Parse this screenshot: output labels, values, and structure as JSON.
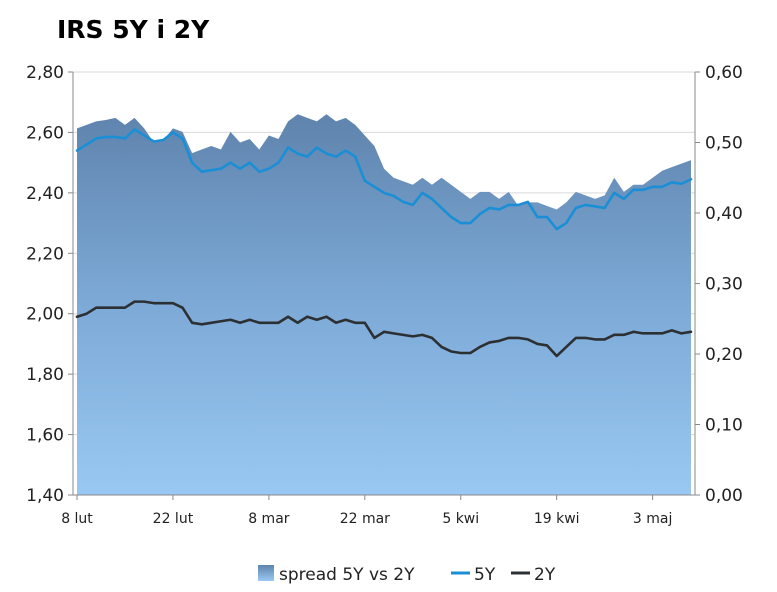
{
  "chart_data": {
    "type": "area",
    "title": "IRS 5Y i 2Y",
    "xlabel": "",
    "ylabel": "",
    "y2label": "",
    "x_ticks": [
      "8 lut",
      "22 lut",
      "8 mar",
      "22 mar",
      "5 kwi",
      "19 kwi",
      "3 maj"
    ],
    "ylim": [
      1.4,
      2.8
    ],
    "y_ticks": [
      "1,40",
      "1,60",
      "1,80",
      "2,00",
      "2,20",
      "2,40",
      "2,60",
      "2,80"
    ],
    "y2lim": [
      0.0,
      0.6
    ],
    "y2_ticks": [
      "0,00",
      "0,10",
      "0,20",
      "0,30",
      "0,40",
      "0,50",
      "0,60"
    ],
    "grid": "horizontal",
    "legend_position": "bottom",
    "x": [
      "8 lut",
      "9 lut",
      "10 lut",
      "11 lut",
      "12 lut",
      "15 lut",
      "16 lut",
      "17 lut",
      "18 lut",
      "19 lut",
      "22 lut",
      "23 lut",
      "24 lut",
      "25 lut",
      "26 lut",
      "1 mar",
      "2 mar",
      "3 mar",
      "4 mar",
      "5 mar",
      "8 mar",
      "9 mar",
      "10 mar",
      "11 mar",
      "12 mar",
      "15 mar",
      "16 mar",
      "17 mar",
      "18 mar",
      "19 mar",
      "22 mar",
      "23 mar",
      "24 mar",
      "25 mar",
      "26 mar",
      "29 mar",
      "30 mar",
      "31 mar",
      "1 kwi",
      "2 kwi",
      "5 kwi",
      "6 kwi",
      "7 kwi",
      "8 kwi",
      "9 kwi",
      "12 kwi",
      "13 kwi",
      "14 kwi",
      "15 kwi",
      "16 kwi",
      "19 kwi",
      "20 kwi",
      "21 kwi",
      "22 kwi",
      "23 kwi",
      "26 kwi",
      "27 kwi",
      "28 kwi",
      "29 kwi",
      "30 kwi",
      "3 maj",
      "4 maj",
      "5 maj",
      "6 maj",
      "7 maj"
    ],
    "series": [
      {
        "name": "spread 5Y vs 2Y",
        "axis": "right",
        "color": "#6f95bf",
        "values": [
          0.52,
          0.525,
          0.53,
          0.532,
          0.535,
          0.525,
          0.535,
          0.52,
          0.5,
          0.503,
          0.52,
          0.515,
          0.485,
          0.49,
          0.495,
          0.49,
          0.515,
          0.5,
          0.505,
          0.49,
          0.51,
          0.505,
          0.53,
          0.54,
          0.535,
          0.53,
          0.54,
          0.53,
          0.535,
          0.525,
          0.51,
          0.495,
          0.463,
          0.45,
          0.445,
          0.44,
          0.45,
          0.44,
          0.45,
          0.44,
          0.43,
          0.42,
          0.43,
          0.43,
          0.42,
          0.43,
          0.41,
          0.415,
          0.415,
          0.41,
          0.405,
          0.415,
          0.43,
          0.425,
          0.42,
          0.425,
          0.45,
          0.43,
          0.44,
          0.44,
          0.45,
          0.46,
          0.465,
          0.47,
          0.475
        ]
      },
      {
        "name": "5Y",
        "axis": "left",
        "color": "#1a8fd6",
        "values": [
          2.54,
          2.56,
          2.58,
          2.585,
          2.585,
          2.58,
          2.61,
          2.59,
          2.57,
          2.575,
          2.6,
          2.58,
          2.5,
          2.47,
          2.475,
          2.48,
          2.5,
          2.48,
          2.5,
          2.47,
          2.48,
          2.5,
          2.55,
          2.53,
          2.52,
          2.55,
          2.53,
          2.52,
          2.54,
          2.52,
          2.44,
          2.42,
          2.4,
          2.39,
          2.37,
          2.36,
          2.4,
          2.38,
          2.35,
          2.32,
          2.3,
          2.3,
          2.33,
          2.35,
          2.345,
          2.36,
          2.36,
          2.37,
          2.32,
          2.32,
          2.28,
          2.3,
          2.35,
          2.36,
          2.355,
          2.35,
          2.4,
          2.38,
          2.41,
          2.41,
          2.42,
          2.42,
          2.435,
          2.43,
          2.445
        ]
      },
      {
        "name": "2Y",
        "axis": "left",
        "color": "#2d3033",
        "values": [
          1.99,
          2.0,
          2.02,
          2.02,
          2.02,
          2.02,
          2.04,
          2.04,
          2.035,
          2.035,
          2.035,
          2.02,
          1.97,
          1.965,
          1.97,
          1.975,
          1.98,
          1.97,
          1.98,
          1.97,
          1.97,
          1.97,
          1.99,
          1.97,
          1.99,
          1.98,
          1.99,
          1.97,
          1.98,
          1.97,
          1.97,
          1.92,
          1.94,
          1.935,
          1.93,
          1.925,
          1.93,
          1.92,
          1.89,
          1.875,
          1.87,
          1.87,
          1.89,
          1.905,
          1.91,
          1.92,
          1.92,
          1.915,
          1.9,
          1.895,
          1.86,
          1.89,
          1.92,
          1.92,
          1.915,
          1.915,
          1.93,
          1.93,
          1.94,
          1.935,
          1.935,
          1.935,
          1.945,
          1.935,
          1.94
        ]
      }
    ]
  }
}
